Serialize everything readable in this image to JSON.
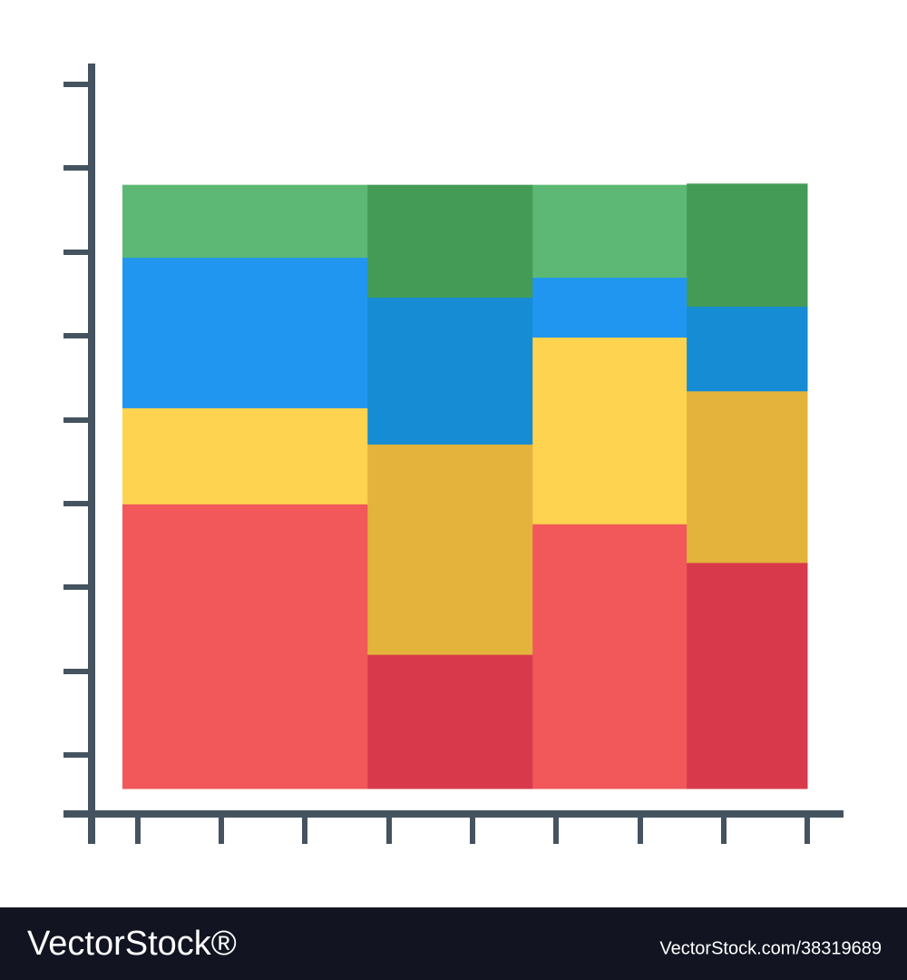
{
  "chart_data": {
    "type": "marimekko",
    "widths": [
      35.8,
      24.1,
      22.5,
      17.6
    ],
    "ylim": [
      0,
      100
    ],
    "series": [
      {
        "colors": [
          "#f2575a",
          "#d83a4b",
          "#f2575a",
          "#d83a4b"
        ],
        "values": [
          47.1,
          22.2,
          43.8,
          37.4
        ]
      },
      {
        "colors": [
          "#fdd34f",
          "#e3b33b",
          "#fdd34f",
          "#e3b33b"
        ],
        "values": [
          15.9,
          34.8,
          30.9,
          28.4
        ]
      },
      {
        "colors": [
          "#2196f0",
          "#158cd4",
          "#2196f0",
          "#158cd4"
        ],
        "values": [
          24.9,
          24.3,
          9.9,
          14.0
        ]
      },
      {
        "colors": [
          "#5cb874",
          "#439b55",
          "#5cb874",
          "#439b55"
        ],
        "values": [
          12.0,
          18.6,
          15.3,
          20.3
        ]
      }
    ]
  },
  "watermark": {
    "brand": "VectorStock®",
    "id": "VectorStock.com/38319689"
  }
}
